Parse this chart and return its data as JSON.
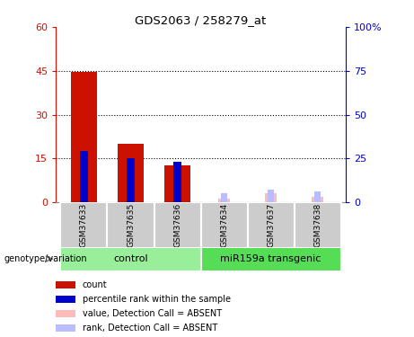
{
  "title": "GDS2063 / 258279_at",
  "samples": [
    "GSM37633",
    "GSM37635",
    "GSM37636",
    "GSM37634",
    "GSM37637",
    "GSM37638"
  ],
  "count_values": [
    44.5,
    20.0,
    12.5,
    null,
    null,
    null
  ],
  "rank_values": [
    29.0,
    25.0,
    23.0,
    null,
    null,
    null
  ],
  "absent_count_values": [
    null,
    null,
    null,
    1.2,
    3.0,
    2.0
  ],
  "absent_rank_values": [
    null,
    null,
    null,
    5.0,
    7.0,
    6.0
  ],
  "ylim_left": [
    0,
    60
  ],
  "ylim_right": [
    0,
    100
  ],
  "yticks_left": [
    0,
    15,
    30,
    45,
    60
  ],
  "yticks_right": [
    0,
    25,
    50,
    75,
    100
  ],
  "left_color": "#cc1100",
  "right_color": "#0000cc",
  "absent_count_color": "#ffbbbb",
  "absent_rank_color": "#bbbbff",
  "control_color": "#99ee99",
  "transgenic_color": "#55dd55",
  "bar_gray": "#cccccc",
  "genotype_label": "genotype/variation",
  "legend_items": [
    [
      "#cc1100",
      "count"
    ],
    [
      "#0000cc",
      "percentile rank within the sample"
    ],
    [
      "#ffbbbb",
      "value, Detection Call = ABSENT"
    ],
    [
      "#bbbbff",
      "rank, Detection Call = ABSENT"
    ]
  ]
}
